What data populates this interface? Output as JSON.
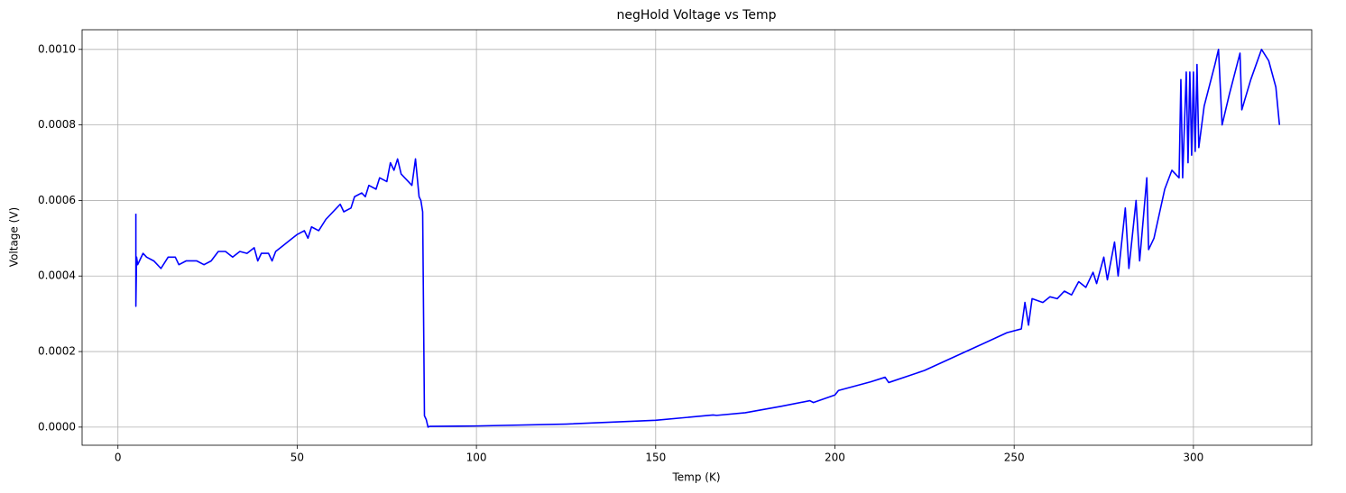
{
  "chart_data": {
    "type": "line",
    "title": "negHold Voltage vs Temp",
    "xlabel": "Temp (K)",
    "ylabel": "Voltage (V)",
    "color": "#0000ff",
    "grid": true,
    "xlim": [
      -10,
      333
    ],
    "ylim": [
      -4.8e-05,
      0.001052
    ],
    "xticks": [
      0,
      50,
      100,
      150,
      200,
      250,
      300
    ],
    "yticks": [
      {
        "value": 0,
        "label": "0.0000"
      },
      {
        "value": 0.0002,
        "label": "0.0002"
      },
      {
        "value": 0.0004,
        "label": "0.0004"
      },
      {
        "value": 0.0006,
        "label": "0.0006"
      },
      {
        "value": 0.0008,
        "label": "0.0008"
      },
      {
        "value": 0.001,
        "label": "0.0010"
      }
    ],
    "x": [
      5,
      5,
      5.2,
      5.5,
      6,
      7,
      8,
      10,
      12,
      14,
      16,
      17,
      19,
      22,
      24,
      26,
      28,
      30,
      32,
      34,
      36,
      38,
      39,
      40,
      42,
      43,
      44,
      46,
      48,
      50,
      52,
      53,
      54,
      56,
      58,
      60,
      62,
      63,
      65,
      66,
      68,
      69,
      70,
      72,
      73,
      75,
      76,
      77,
      78,
      79,
      80,
      81,
      82,
      83,
      84,
      84.5,
      85,
      85.5,
      86,
      86.5,
      87,
      100,
      125,
      150,
      166,
      167,
      175,
      185,
      193,
      194,
      200,
      201,
      210,
      214,
      215,
      225,
      240,
      248,
      252,
      253,
      254,
      255,
      258,
      260,
      262,
      264,
      266,
      268,
      270,
      272,
      273,
      275,
      276,
      278,
      279,
      281,
      282,
      284,
      285,
      287,
      287.5,
      289,
      292,
      294,
      296,
      296.5,
      297,
      298,
      298.5,
      299,
      299.5,
      300,
      300.5,
      301,
      301.5,
      303,
      306,
      307,
      308,
      310,
      313,
      313.5,
      316,
      319,
      321,
      323,
      324
    ],
    "values": [
      0.000565,
      0.00032,
      0.00045,
      0.00043,
      0.00044,
      0.00046,
      0.00045,
      0.00044,
      0.00042,
      0.00045,
      0.00045,
      0.00043,
      0.00044,
      0.00044,
      0.00043,
      0.00044,
      0.000465,
      0.000465,
      0.00045,
      0.000465,
      0.00046,
      0.000475,
      0.00044,
      0.00046,
      0.00046,
      0.00044,
      0.000465,
      0.00048,
      0.000495,
      0.00051,
      0.00052,
      0.0005,
      0.00053,
      0.00052,
      0.00055,
      0.00057,
      0.00059,
      0.00057,
      0.00058,
      0.00061,
      0.00062,
      0.00061,
      0.00064,
      0.00063,
      0.00066,
      0.00065,
      0.0007,
      0.00068,
      0.00071,
      0.00067,
      0.00066,
      0.00065,
      0.00064,
      0.00071,
      0.00061,
      0.0006,
      0.00057,
      3e-05,
      2e-05,
      0.0,
      2e-06,
      3e-06,
      8e-06,
      1.8e-05,
      3.2e-05,
      3.1e-05,
      3.8e-05,
      5.5e-05,
      7e-05,
      6.5e-05,
      8.5e-05,
      9.7e-05,
      0.00012,
      0.000132,
      0.000118,
      0.00015,
      0.000215,
      0.00025,
      0.00026,
      0.00033,
      0.00027,
      0.00034,
      0.00033,
      0.000345,
      0.00034,
      0.00036,
      0.00035,
      0.000385,
      0.00037,
      0.00041,
      0.00038,
      0.00045,
      0.00039,
      0.00049,
      0.0004,
      0.00058,
      0.00042,
      0.0006,
      0.00044,
      0.00066,
      0.00047,
      0.0005,
      0.00063,
      0.00068,
      0.00066,
      0.00092,
      0.00066,
      0.00094,
      0.0007,
      0.00094,
      0.00072,
      0.00094,
      0.00073,
      0.00096,
      0.00074,
      0.00085,
      0.00096,
      0.001,
      0.0008,
      0.00088,
      0.00099,
      0.00084,
      0.00092,
      0.001,
      0.00097,
      0.0009,
      0.0008
    ]
  }
}
